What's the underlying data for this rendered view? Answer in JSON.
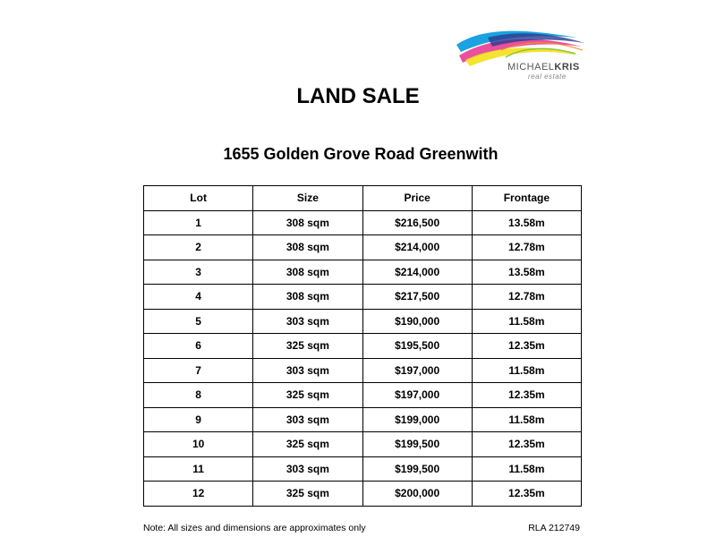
{
  "logo": {
    "brand_first": "MICHAEL",
    "brand_second": "KRIS",
    "tagline": "real estate"
  },
  "title": "LAND SALE",
  "subtitle": "1655 Golden Grove Road Greenwith",
  "table": {
    "header": [
      "Lot",
      "Size",
      "Price",
      "Frontage"
    ],
    "rows": [
      [
        "1",
        "308 sqm",
        "$216,500",
        "13.58m"
      ],
      [
        "2",
        "308 sqm",
        "$214,000",
        "12.78m"
      ],
      [
        "3",
        "308 sqm",
        "$214,000",
        "13.58m"
      ],
      [
        "4",
        "308 sqm",
        "$217,500",
        "12.78m"
      ],
      [
        "5",
        "303 sqm",
        "$190,000",
        "11.58m"
      ],
      [
        "6",
        "325 sqm",
        "$195,500",
        "12.35m"
      ],
      [
        "7",
        "303 sqm",
        "$197,000",
        "11.58m"
      ],
      [
        "8",
        "325 sqm",
        "$197,000",
        "12.35m"
      ],
      [
        "9",
        "303 sqm",
        "$199,000",
        "11.58m"
      ],
      [
        "10",
        "325 sqm",
        "$199,500",
        "12.35m"
      ],
      [
        "11",
        "303 sqm",
        "$199,500",
        "11.58m"
      ],
      [
        "12",
        "325 sqm",
        "$200,000",
        "12.35m"
      ]
    ]
  },
  "footer": {
    "note": "Note: All sizes and dimensions are approximates only",
    "rla": "RLA 212749"
  }
}
